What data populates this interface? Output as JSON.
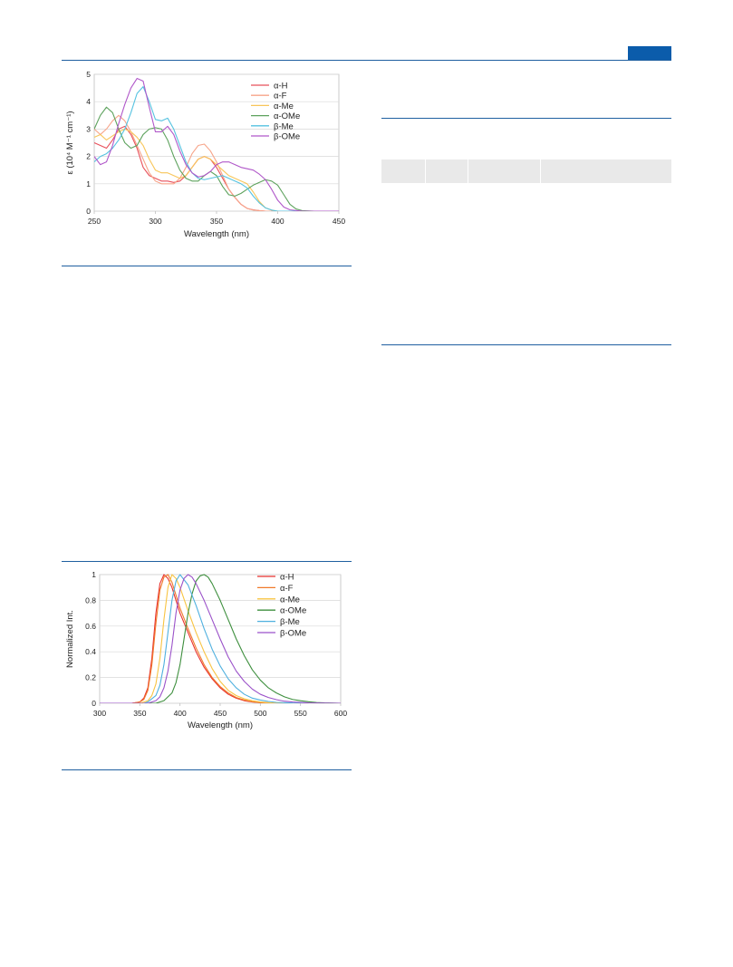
{
  "colors": {
    "rule": "#1f5fa0",
    "header_block": "#0b5cab",
    "table_header": "#e9e9e9",
    "grid": "#d9d9d9",
    "axis": "#bfbfbf"
  },
  "chart_data": [
    {
      "type": "line",
      "title": "",
      "xlabel": "Wavelength (nm)",
      "ylabel": "ε (10⁴ M⁻¹ cm⁻¹)",
      "xlim": [
        250,
        450
      ],
      "ylim": [
        0,
        5
      ],
      "xticks": [
        250,
        300,
        350,
        400,
        450
      ],
      "yticks": [
        0,
        1,
        2,
        3,
        4,
        5
      ],
      "grid": "horizontal",
      "legend_position": "top-right",
      "series": [
        {
          "name": "α-H",
          "color": "#e8505b",
          "x": [
            250,
            255,
            260,
            265,
            270,
            275,
            280,
            285,
            290,
            295,
            300,
            305,
            310,
            315,
            320,
            325,
            330,
            335,
            340,
            345,
            350,
            355,
            360,
            365,
            370,
            375,
            380,
            385,
            390,
            400,
            410,
            420,
            430,
            440,
            450
          ],
          "y": [
            2.5,
            2.4,
            2.3,
            2.6,
            3.0,
            3.1,
            2.8,
            2.3,
            1.6,
            1.3,
            1.2,
            1.1,
            1.1,
            1.05,
            1.1,
            1.3,
            1.6,
            1.9,
            2.0,
            1.9,
            1.6,
            1.2,
            0.8,
            0.5,
            0.25,
            0.1,
            0.05,
            0.02,
            0.0,
            0.0,
            0.0,
            0.0,
            0.0,
            0.0,
            0.0
          ]
        },
        {
          "name": "α-F",
          "color": "#f7a489",
          "x": [
            250,
            255,
            260,
            265,
            270,
            275,
            280,
            285,
            290,
            295,
            300,
            305,
            310,
            315,
            320,
            325,
            330,
            335,
            340,
            345,
            350,
            355,
            360,
            365,
            370,
            375,
            380,
            385,
            390,
            400,
            410,
            420,
            430,
            440,
            450
          ],
          "y": [
            3.0,
            2.8,
            3.0,
            3.3,
            3.5,
            3.3,
            2.9,
            2.4,
            1.9,
            1.4,
            1.1,
            1.0,
            1.0,
            1.0,
            1.2,
            1.6,
            2.1,
            2.4,
            2.45,
            2.2,
            1.8,
            1.3,
            0.8,
            0.5,
            0.25,
            0.1,
            0.04,
            0.02,
            0.0,
            0.0,
            0.0,
            0.0,
            0.0,
            0.0,
            0.0
          ]
        },
        {
          "name": "α-Me",
          "color": "#f8c65a",
          "x": [
            250,
            255,
            260,
            265,
            270,
            275,
            280,
            285,
            290,
            295,
            300,
            305,
            310,
            315,
            320,
            325,
            330,
            335,
            340,
            345,
            350,
            355,
            360,
            365,
            370,
            375,
            380,
            385,
            390,
            395,
            400,
            410,
            420,
            430,
            440,
            450
          ],
          "y": [
            2.7,
            2.8,
            2.6,
            2.75,
            2.9,
            3.0,
            2.9,
            2.7,
            2.4,
            1.9,
            1.5,
            1.4,
            1.4,
            1.3,
            1.2,
            1.3,
            1.6,
            1.9,
            2.0,
            1.9,
            1.7,
            1.5,
            1.3,
            1.2,
            1.1,
            1.0,
            0.7,
            0.35,
            0.12,
            0.04,
            0.0,
            0.0,
            0.0,
            0.0,
            0.0,
            0.0
          ]
        },
        {
          "name": "α-OMe",
          "color": "#5da25d",
          "x": [
            250,
            255,
            260,
            265,
            270,
            275,
            280,
            285,
            290,
            295,
            300,
            305,
            310,
            315,
            320,
            325,
            330,
            335,
            340,
            345,
            350,
            355,
            360,
            365,
            370,
            375,
            380,
            385,
            390,
            395,
            400,
            405,
            410,
            415,
            420,
            430,
            440,
            450
          ],
          "y": [
            3.0,
            3.5,
            3.8,
            3.6,
            3.0,
            2.5,
            2.3,
            2.4,
            2.8,
            3.0,
            3.05,
            3.0,
            2.6,
            2.0,
            1.5,
            1.2,
            1.1,
            1.1,
            1.3,
            1.45,
            1.3,
            0.9,
            0.6,
            0.55,
            0.65,
            0.8,
            0.95,
            1.05,
            1.15,
            1.1,
            0.95,
            0.6,
            0.25,
            0.08,
            0.02,
            0.0,
            0.0,
            0.0
          ]
        },
        {
          "name": "β-Me",
          "color": "#55c2e0",
          "x": [
            250,
            255,
            260,
            265,
            270,
            275,
            280,
            285,
            290,
            295,
            300,
            305,
            310,
            315,
            320,
            325,
            330,
            335,
            340,
            345,
            350,
            355,
            360,
            365,
            370,
            375,
            380,
            385,
            390,
            395,
            400,
            410,
            420,
            430,
            440,
            450
          ],
          "y": [
            1.8,
            2.0,
            2.1,
            2.3,
            2.6,
            3.0,
            3.6,
            4.3,
            4.55,
            4.0,
            3.35,
            3.3,
            3.4,
            3.0,
            2.4,
            1.8,
            1.4,
            1.2,
            1.15,
            1.2,
            1.25,
            1.3,
            1.2,
            1.1,
            1.0,
            0.85,
            0.55,
            0.3,
            0.12,
            0.04,
            0.0,
            0.0,
            0.0,
            0.0,
            0.0,
            0.0
          ]
        },
        {
          "name": "β-OMe",
          "color": "#b057c9",
          "x": [
            250,
            255,
            260,
            265,
            270,
            275,
            280,
            285,
            290,
            295,
            300,
            305,
            310,
            315,
            320,
            325,
            330,
            335,
            340,
            345,
            350,
            355,
            360,
            365,
            370,
            375,
            380,
            385,
            390,
            395,
            400,
            405,
            410,
            420,
            430,
            440,
            450
          ],
          "y": [
            2.0,
            1.7,
            1.8,
            2.4,
            3.2,
            3.9,
            4.5,
            4.85,
            4.75,
            3.8,
            2.9,
            2.9,
            3.1,
            2.8,
            2.2,
            1.7,
            1.4,
            1.25,
            1.3,
            1.45,
            1.7,
            1.8,
            1.8,
            1.7,
            1.6,
            1.55,
            1.5,
            1.35,
            1.15,
            0.8,
            0.4,
            0.15,
            0.05,
            0.0,
            0.0,
            0.0,
            0.0
          ]
        }
      ]
    },
    {
      "type": "line",
      "title": "",
      "xlabel": "Wavelength (nm)",
      "ylabel": "Normalized Int.",
      "xlim": [
        300,
        600
      ],
      "ylim": [
        0,
        1
      ],
      "xticks": [
        300,
        350,
        400,
        450,
        500,
        550,
        600
      ],
      "yticks": [
        0,
        0.2,
        0.4,
        0.6,
        0.8,
        1
      ],
      "grid": "horizontal",
      "legend_position": "top-right",
      "series": [
        {
          "name": "α-H",
          "color": "#e8322f",
          "x": [
            300,
            340,
            350,
            355,
            360,
            365,
            370,
            375,
            380,
            385,
            390,
            395,
            400,
            410,
            420,
            430,
            440,
            450,
            460,
            470,
            480,
            490,
            500,
            520,
            540,
            560,
            600
          ],
          "y": [
            0,
            0,
            0.01,
            0.04,
            0.12,
            0.35,
            0.7,
            0.93,
            1.0,
            0.97,
            0.9,
            0.8,
            0.7,
            0.55,
            0.4,
            0.28,
            0.19,
            0.12,
            0.07,
            0.04,
            0.02,
            0.01,
            0.005,
            0,
            0,
            0,
            0
          ]
        },
        {
          "name": "α-F",
          "color": "#f07a2a",
          "x": [
            300,
            340,
            350,
            355,
            360,
            365,
            370,
            375,
            380,
            385,
            390,
            395,
            400,
            410,
            420,
            430,
            440,
            450,
            460,
            470,
            480,
            490,
            500,
            520,
            540,
            560,
            600
          ],
          "y": [
            0,
            0,
            0.01,
            0.03,
            0.1,
            0.3,
            0.62,
            0.88,
            0.98,
            1.0,
            0.94,
            0.84,
            0.74,
            0.58,
            0.43,
            0.3,
            0.2,
            0.13,
            0.08,
            0.045,
            0.025,
            0.012,
            0.005,
            0,
            0,
            0,
            0
          ]
        },
        {
          "name": "α-Me",
          "color": "#f8c442",
          "x": [
            300,
            350,
            360,
            365,
            370,
            375,
            380,
            385,
            390,
            395,
            400,
            410,
            420,
            430,
            440,
            450,
            460,
            470,
            480,
            490,
            500,
            510,
            520,
            540,
            560,
            600
          ],
          "y": [
            0,
            0,
            0.02,
            0.06,
            0.15,
            0.35,
            0.65,
            0.9,
            1.0,
            0.97,
            0.9,
            0.72,
            0.55,
            0.4,
            0.27,
            0.17,
            0.1,
            0.06,
            0.035,
            0.02,
            0.01,
            0.005,
            0,
            0,
            0,
            0
          ]
        },
        {
          "name": "α-OMe",
          "color": "#3e8f3e",
          "x": [
            300,
            370,
            380,
            390,
            395,
            400,
            405,
            410,
            415,
            420,
            425,
            430,
            435,
            440,
            450,
            460,
            470,
            480,
            490,
            500,
            510,
            520,
            530,
            540,
            550,
            560,
            570,
            580,
            600
          ],
          "y": [
            0,
            0,
            0.02,
            0.08,
            0.16,
            0.3,
            0.5,
            0.7,
            0.85,
            0.95,
            0.99,
            1.0,
            0.98,
            0.93,
            0.8,
            0.65,
            0.5,
            0.37,
            0.26,
            0.18,
            0.12,
            0.08,
            0.05,
            0.03,
            0.02,
            0.012,
            0.006,
            0.003,
            0
          ]
        },
        {
          "name": "β-Me",
          "color": "#4fb0df",
          "x": [
            300,
            355,
            360,
            370,
            375,
            380,
            385,
            390,
            395,
            400,
            410,
            420,
            430,
            440,
            450,
            460,
            470,
            480,
            490,
            500,
            510,
            520,
            540,
            560,
            600
          ],
          "y": [
            0,
            0,
            0.01,
            0.06,
            0.14,
            0.3,
            0.55,
            0.8,
            0.95,
            1.0,
            0.92,
            0.76,
            0.58,
            0.42,
            0.29,
            0.19,
            0.12,
            0.07,
            0.04,
            0.025,
            0.014,
            0.007,
            0.002,
            0,
            0
          ]
        },
        {
          "name": "β-OMe",
          "color": "#9b52c9",
          "x": [
            300,
            360,
            370,
            375,
            380,
            385,
            390,
            395,
            400,
            405,
            410,
            415,
            420,
            430,
            440,
            450,
            460,
            470,
            480,
            490,
            500,
            510,
            520,
            530,
            540,
            560,
            600
          ],
          "y": [
            0,
            0,
            0.02,
            0.05,
            0.12,
            0.25,
            0.45,
            0.7,
            0.88,
            0.97,
            1.0,
            0.98,
            0.93,
            0.8,
            0.65,
            0.5,
            0.36,
            0.25,
            0.17,
            0.11,
            0.07,
            0.045,
            0.028,
            0.016,
            0.01,
            0.003,
            0
          ]
        }
      ]
    }
  ]
}
